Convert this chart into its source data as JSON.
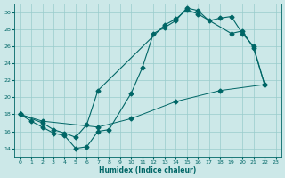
{
  "xlabel": "Humidex (Indice chaleur)",
  "bg_color": "#cce8e8",
  "grid_color": "#99cccc",
  "line_color": "#006666",
  "xlim": [
    -0.5,
    23.5
  ],
  "ylim": [
    13,
    31
  ],
  "xticks": [
    0,
    1,
    2,
    3,
    4,
    5,
    6,
    7,
    8,
    9,
    10,
    11,
    12,
    13,
    14,
    15,
    16,
    17,
    18,
    19,
    20,
    21,
    22,
    23
  ],
  "yticks": [
    14,
    16,
    18,
    20,
    22,
    24,
    26,
    28,
    30
  ],
  "line1_x": [
    0,
    1,
    2,
    3,
    4,
    5,
    6,
    7,
    8,
    10,
    11,
    12,
    13,
    14,
    15,
    16,
    17,
    18,
    19,
    20,
    21,
    22
  ],
  "line1_y": [
    18,
    17.2,
    16.5,
    15.8,
    15.5,
    14.0,
    14.2,
    16.0,
    16.2,
    20.5,
    23.5,
    27.5,
    28.2,
    29.0,
    30.5,
    30.2,
    29.0,
    29.3,
    29.5,
    27.5,
    26.0,
    21.5
  ],
  "line2_x": [
    0,
    2,
    3,
    4,
    5,
    6,
    7,
    13,
    14,
    15,
    16,
    19,
    20,
    21,
    22
  ],
  "line2_y": [
    18,
    17.0,
    16.2,
    15.8,
    15.3,
    16.8,
    20.8,
    28.5,
    29.2,
    30.3,
    29.8,
    27.5,
    27.8,
    25.8,
    21.5
  ],
  "line3_x": [
    0,
    2,
    7,
    10,
    14,
    18,
    22
  ],
  "line3_y": [
    18,
    17.2,
    16.5,
    17.5,
    19.5,
    20.8,
    21.5
  ]
}
